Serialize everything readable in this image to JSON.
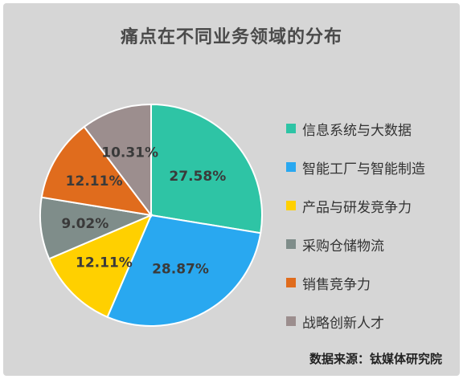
{
  "chart_data": {
    "type": "pie",
    "title": "痛点在不同业务领域的分布",
    "source": "数据来源：钛媒体研究院",
    "legend_position": "right",
    "slices": [
      {
        "label": "信息系统与大数据",
        "value": 27.58,
        "value_label": "27.58%",
        "color": "#2ec4a5"
      },
      {
        "label": "智能工厂与智能制造",
        "value": 28.87,
        "value_label": "28.87%",
        "color": "#29a8f0"
      },
      {
        "label": "产品与研发竞争力",
        "value": 12.11,
        "value_label": "12.11%",
        "color": "#ffd000"
      },
      {
        "label": "采购仓储物流",
        "value": 9.02,
        "value_label": "9.02%",
        "color": "#7f8d8a"
      },
      {
        "label": "销售竞争力",
        "value": 12.11,
        "value_label": "12.11%",
        "color": "#e06c1d"
      },
      {
        "label": "战略创新人才",
        "value": 10.31,
        "value_label": "10.31%",
        "color": "#9c8e8e"
      }
    ]
  }
}
